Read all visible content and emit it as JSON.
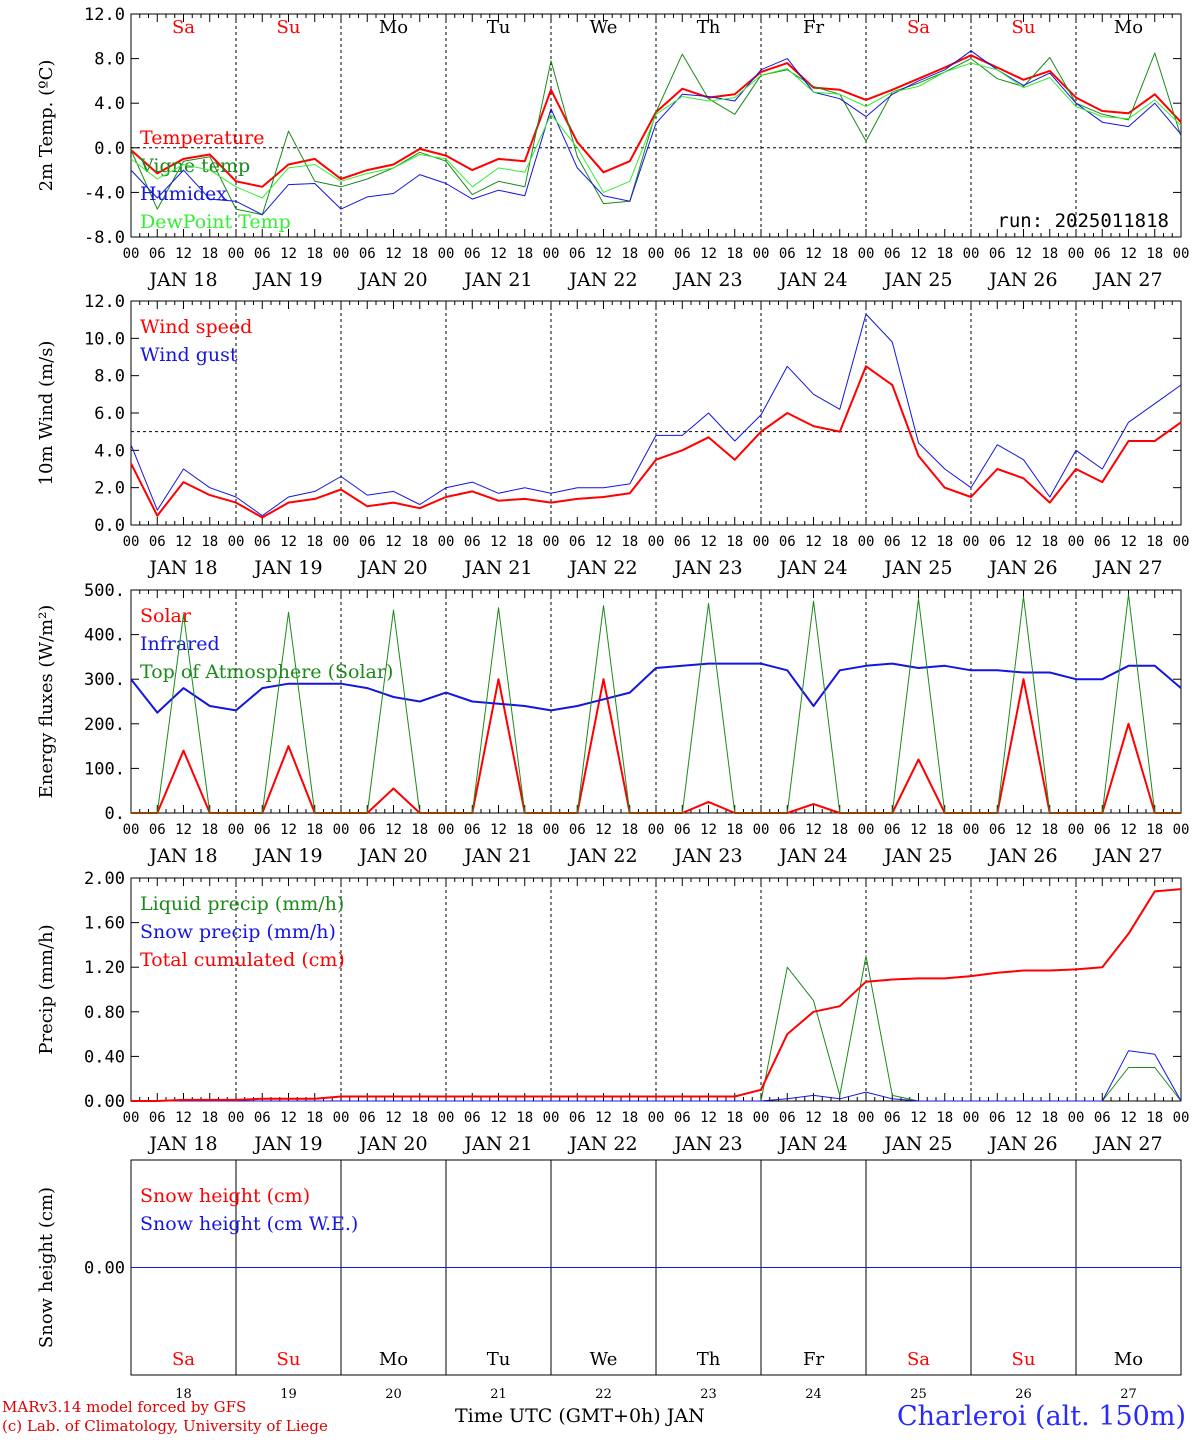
{
  "colors": {
    "red": "#ff0000",
    "darkgreen": "#1a8a1a",
    "blue": "#1515e0",
    "lightgreen": "#33ee33",
    "black": "#000000",
    "station": "#2a2aff"
  },
  "day_abbr": [
    "Sa",
    "Su",
    "Mo",
    "Tu",
    "We",
    "Th",
    "Fr",
    "Sa",
    "Su",
    "Mo"
  ],
  "day_abbr_colors": [
    "red",
    "red",
    "black",
    "black",
    "black",
    "black",
    "black",
    "red",
    "red",
    "black"
  ],
  "hour_labels": [
    "00",
    "06",
    "12",
    "18"
  ],
  "date_labels": [
    "JAN 18",
    "JAN 19",
    "JAN 20",
    "JAN 21",
    "JAN 22",
    "JAN 23",
    "JAN 24",
    "JAN 25",
    "JAN 26",
    "JAN 27"
  ],
  "bottom_day_numbers": [
    "18",
    "19",
    "20",
    "21",
    "22",
    "23",
    "24",
    "25",
    "26",
    "27"
  ],
  "footer": {
    "model": "MARv3.14 model forced by GFS",
    "lab": "(c) Lab. of Climatology, University of Liege",
    "xlabel": "Time UTC (GMT+0h) JAN",
    "station": "Charleroi (alt. 150m)"
  },
  "chart_data": [
    {
      "type": "line",
      "id": "temperature",
      "ylabel": "2m Temp. (ºC)",
      "ylim": [
        -8,
        12
      ],
      "yticks": [
        "-8.0",
        "-4.0",
        "0.0",
        "4.0",
        "8.0",
        "12.0"
      ],
      "tick_values": [
        -8,
        -4,
        0,
        4,
        8,
        12
      ],
      "run_label": "run: 2025011818",
      "dashed_hline": 0,
      "x": [
        0,
        6,
        12,
        18,
        24,
        30,
        36,
        42,
        48,
        54,
        60,
        66,
        72,
        78,
        84,
        90,
        96,
        102,
        108,
        114,
        120,
        126,
        132,
        138,
        144,
        150,
        156,
        162,
        168,
        174,
        180,
        186,
        192,
        198,
        204,
        210,
        216,
        222,
        228,
        234,
        240
      ],
      "series": [
        {
          "name": "Temperature",
          "color": "red",
          "width": 2,
          "values": [
            -0.2,
            -2.3,
            -1.0,
            -0.6,
            -3.0,
            -3.5,
            -1.5,
            -1.0,
            -2.8,
            -2.0,
            -1.5,
            -0.1,
            -0.7,
            -2.0,
            -1.0,
            -1.2,
            5.2,
            0.5,
            -2.2,
            -1.2,
            3.2,
            5.3,
            4.5,
            4.8,
            6.8,
            7.6,
            5.4,
            5.2,
            4.3,
            5.2,
            6.2,
            7.2,
            8.3,
            7.2,
            6.1,
            6.9,
            4.5,
            3.3,
            3.1,
            4.8,
            2.3
          ]
        },
        {
          "name": "Vigne temp",
          "color": "darkgreen",
          "width": 1,
          "values": [
            -0.2,
            -5.5,
            -1.2,
            -0.8,
            -5.5,
            -6.0,
            1.5,
            -3.0,
            -3.5,
            -2.8,
            -1.8,
            -0.4,
            -1.2,
            -4.2,
            -3.0,
            -3.5,
            7.8,
            -0.8,
            -5.0,
            -4.8,
            3.2,
            8.4,
            4.4,
            3.0,
            6.5,
            7.0,
            5.5,
            4.8,
            0.6,
            5.0,
            5.8,
            6.8,
            8.0,
            6.2,
            5.5,
            8.1,
            4.0,
            3.0,
            2.5,
            8.5,
            1.0
          ]
        },
        {
          "name": "Humidex",
          "color": "blue",
          "width": 1,
          "values": [
            -2.0,
            -4.5,
            -2.0,
            -4.6,
            -4.8,
            -6.0,
            -3.3,
            -3.2,
            -5.5,
            -4.4,
            -4.1,
            -2.4,
            -3.2,
            -4.6,
            -3.8,
            -4.3,
            3.5,
            -1.8,
            -4.3,
            -4.8,
            2.2,
            4.8,
            4.6,
            4.2,
            7.0,
            8.0,
            5.0,
            4.4,
            2.8,
            4.8,
            6.0,
            7.0,
            8.7,
            7.0,
            5.6,
            6.7,
            4.0,
            2.3,
            1.9,
            4.0,
            1.2
          ]
        },
        {
          "name": "DewPoint Temp",
          "color": "lightgreen",
          "width": 1,
          "values": [
            -1.0,
            -2.8,
            -1.5,
            -2.0,
            -3.5,
            -4.5,
            -1.8,
            -1.5,
            -3.0,
            -2.3,
            -1.8,
            -0.6,
            -1.0,
            -3.5,
            -1.8,
            -2.2,
            3.0,
            0.0,
            -4.0,
            -3.0,
            3.0,
            4.6,
            4.2,
            4.5,
            6.5,
            7.1,
            5.0,
            4.8,
            3.7,
            5.0,
            5.5,
            6.8,
            7.6,
            7.0,
            5.4,
            6.3,
            3.7,
            2.8,
            2.6,
            4.3,
            2.0
          ]
        }
      ]
    },
    {
      "type": "line",
      "id": "wind",
      "ylabel": "10m Wind (m/s)",
      "ylim": [
        0,
        12
      ],
      "yticks": [
        "0.0",
        "2.0",
        "4.0",
        "6.0",
        "8.0",
        "10.0",
        "12.0"
      ],
      "tick_values": [
        0,
        2,
        4,
        6,
        8,
        10,
        12
      ],
      "dashed_hline": 5,
      "x": [
        0,
        6,
        12,
        18,
        24,
        30,
        36,
        42,
        48,
        54,
        60,
        66,
        72,
        78,
        84,
        90,
        96,
        102,
        108,
        114,
        120,
        126,
        132,
        138,
        144,
        150,
        156,
        162,
        168,
        174,
        180,
        186,
        192,
        198,
        204,
        210,
        216,
        222,
        228,
        234,
        240
      ],
      "series": [
        {
          "name": "Wind speed",
          "color": "red",
          "width": 2,
          "values": [
            3.3,
            0.5,
            2.3,
            1.6,
            1.2,
            0.4,
            1.2,
            1.4,
            1.9,
            1.0,
            1.2,
            0.9,
            1.5,
            1.8,
            1.3,
            1.4,
            1.2,
            1.4,
            1.5,
            1.7,
            3.5,
            4.0,
            4.7,
            3.5,
            5.0,
            6.0,
            5.3,
            5.0,
            8.5,
            7.5,
            3.7,
            2.0,
            1.5,
            3.0,
            2.5,
            1.2,
            3.0,
            2.3,
            4.5,
            4.5,
            5.5
          ]
        },
        {
          "name": "Wind gust",
          "color": "blue",
          "width": 1,
          "values": [
            4.3,
            0.8,
            3.0,
            2.0,
            1.5,
            0.5,
            1.5,
            1.8,
            2.6,
            1.6,
            1.8,
            1.1,
            2.0,
            2.3,
            1.7,
            2.0,
            1.7,
            2.0,
            2.0,
            2.2,
            4.8,
            4.8,
            6.0,
            4.5,
            5.9,
            8.5,
            7.0,
            6.2,
            11.3,
            9.8,
            4.4,
            3.0,
            2.0,
            4.3,
            3.5,
            1.5,
            4.0,
            3.0,
            5.5,
            6.5,
            7.5
          ]
        }
      ]
    },
    {
      "type": "line",
      "id": "energy",
      "ylabel": "Energy fluxes (W/m²)",
      "ylim": [
        0,
        500
      ],
      "yticks": [
        "0.",
        "100.",
        "200.",
        "300.",
        "400.",
        "500."
      ],
      "tick_values": [
        0,
        100,
        200,
        300,
        400,
        500
      ],
      "x": [
        0,
        6,
        12,
        18,
        24,
        30,
        36,
        42,
        48,
        54,
        60,
        66,
        72,
        78,
        84,
        90,
        96,
        102,
        108,
        114,
        120,
        126,
        132,
        138,
        144,
        150,
        156,
        162,
        168,
        174,
        180,
        186,
        192,
        198,
        204,
        210,
        216,
        222,
        228,
        234,
        240
      ],
      "series": [
        {
          "name": "Solar",
          "color": "red",
          "width": 2,
          "values": [
            0,
            0,
            140,
            0,
            0,
            0,
            150,
            0,
            0,
            0,
            55,
            0,
            0,
            0,
            300,
            0,
            0,
            0,
            300,
            0,
            0,
            0,
            25,
            0,
            0,
            0,
            20,
            0,
            0,
            0,
            120,
            0,
            0,
            0,
            300,
            0,
            0,
            0,
            200,
            0,
            0
          ]
        },
        {
          "name": "Infrared",
          "color": "blue",
          "width": 2,
          "values": [
            300,
            225,
            280,
            240,
            230,
            280,
            290,
            290,
            290,
            280,
            260,
            250,
            270,
            250,
            245,
            240,
            230,
            240,
            255,
            270,
            325,
            330,
            335,
            335,
            335,
            320,
            240,
            320,
            330,
            335,
            325,
            330,
            320,
            320,
            315,
            315,
            300,
            300,
            330,
            330,
            280
          ]
        },
        {
          "name": "Top of Atmosphere (Solar)",
          "color": "darkgreen",
          "width": 1,
          "values": [
            0,
            0,
            445,
            0,
            0,
            0,
            450,
            0,
            0,
            0,
            455,
            0,
            0,
            0,
            460,
            0,
            0,
            0,
            465,
            0,
            0,
            0,
            470,
            0,
            0,
            0,
            475,
            0,
            0,
            0,
            480,
            0,
            0,
            0,
            485,
            0,
            0,
            0,
            490,
            0,
            0
          ]
        }
      ]
    },
    {
      "type": "line",
      "id": "precip",
      "ylabel": "Precip (mm/h)",
      "ylim": [
        0,
        2
      ],
      "yticks": [
        "0.00",
        "0.40",
        "0.80",
        "1.20",
        "1.60",
        "2.00"
      ],
      "tick_values": [
        0,
        0.4,
        0.8,
        1.2,
        1.6,
        2.0
      ],
      "x": [
        0,
        6,
        12,
        18,
        24,
        30,
        36,
        42,
        48,
        54,
        60,
        66,
        72,
        78,
        84,
        90,
        96,
        102,
        108,
        114,
        120,
        126,
        132,
        138,
        144,
        150,
        156,
        162,
        168,
        174,
        180,
        186,
        192,
        198,
        204,
        210,
        216,
        222,
        228,
        234,
        240
      ],
      "series": [
        {
          "name": "Liquid precip (mm/h)",
          "color": "darkgreen",
          "width": 1,
          "values": [
            0,
            0,
            0,
            0,
            0,
            0,
            0,
            0,
            0,
            0,
            0,
            0,
            0,
            0,
            0,
            0,
            0,
            0,
            0,
            0,
            0,
            0,
            0,
            0,
            0,
            1.2,
            0.9,
            0.05,
            1.3,
            0.05,
            0,
            0,
            0,
            0,
            0,
            0,
            0,
            0,
            0.3,
            0.3,
            0
          ]
        },
        {
          "name": "Snow precip (mm/h)",
          "color": "blue",
          "width": 1,
          "values": [
            0,
            0,
            0,
            0,
            0,
            0,
            0,
            0,
            0,
            0,
            0,
            0,
            0,
            0,
            0,
            0,
            0,
            0,
            0,
            0,
            0,
            0,
            0,
            0,
            0,
            0.02,
            0.05,
            0.02,
            0.08,
            0.02,
            0,
            0,
            0,
            0,
            0,
            0,
            0,
            0,
            0.45,
            0.42,
            0
          ]
        },
        {
          "name": "Total cumulated (cm)",
          "color": "red",
          "width": 2,
          "values": [
            0,
            0,
            0.01,
            0.01,
            0.01,
            0.02,
            0.02,
            0.02,
            0.04,
            0.04,
            0.04,
            0.04,
            0.04,
            0.04,
            0.04,
            0.04,
            0.04,
            0.04,
            0.04,
            0.04,
            0.04,
            0.04,
            0.04,
            0.04,
            0.1,
            0.6,
            0.8,
            0.85,
            1.07,
            1.09,
            1.1,
            1.1,
            1.12,
            1.15,
            1.17,
            1.17,
            1.18,
            1.2,
            1.5,
            1.88,
            1.9
          ]
        }
      ]
    },
    {
      "type": "line",
      "id": "snow",
      "ylabel": "Snow height (cm)",
      "ylim": [
        -1,
        1
      ],
      "yticks": [
        "0.00"
      ],
      "tick_values": [
        0
      ],
      "x": [
        0,
        240
      ],
      "series": [
        {
          "name": "Snow height (cm)",
          "color": "red",
          "width": 1,
          "values": [
            0,
            0
          ]
        },
        {
          "name": "Snow height (cm W.E.)",
          "color": "blue",
          "width": 1,
          "values": [
            0,
            0
          ]
        }
      ]
    }
  ]
}
